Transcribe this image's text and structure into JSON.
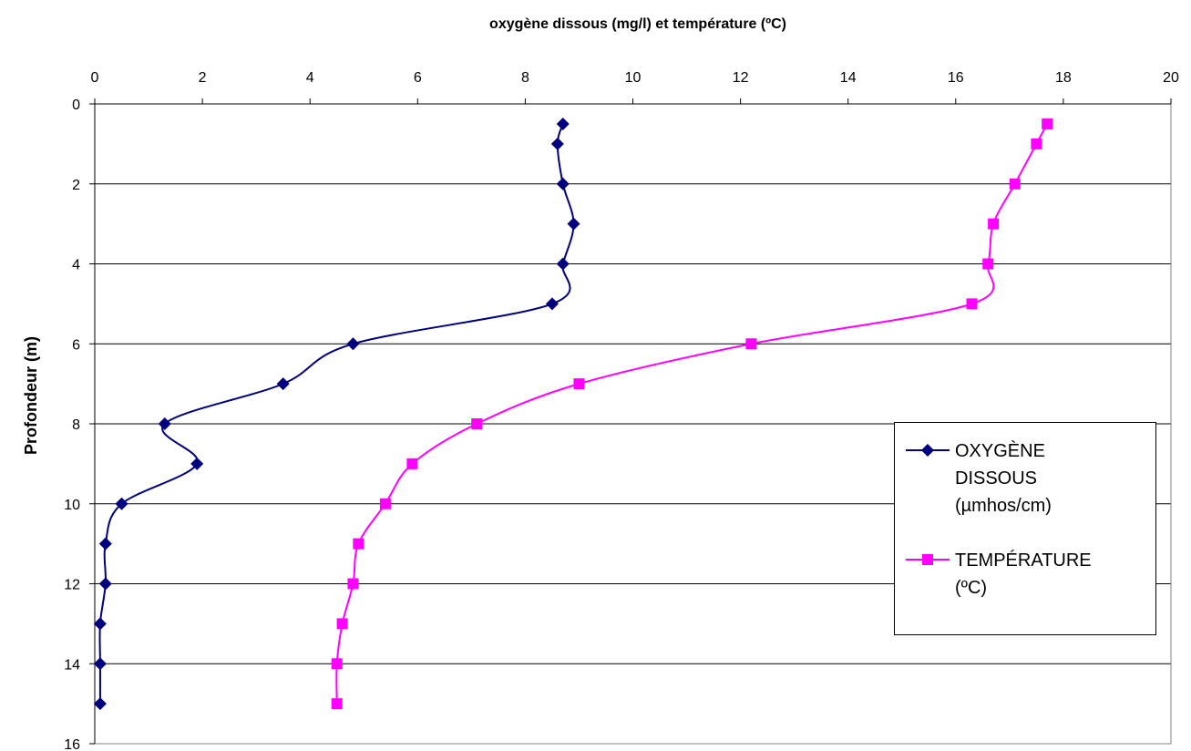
{
  "chart_data": {
    "type": "line",
    "title": "oxygène dissous (mg/l) et température (ºC)",
    "xlabel": "",
    "ylabel": "Profondeur (m)",
    "xlim": [
      0,
      20
    ],
    "ylim": [
      0,
      16
    ],
    "y_inverted": true,
    "x_axis_position": "top",
    "x_ticks": [
      0,
      2,
      4,
      6,
      8,
      10,
      12,
      14,
      16,
      18,
      20
    ],
    "y_ticks": [
      0,
      2,
      4,
      6,
      8,
      10,
      12,
      14,
      16
    ],
    "grid": "horizontal",
    "legend_position": "right",
    "series": [
      {
        "name": "OXYGÈNE DISSOUS (µmhos/cm)",
        "color": "#00007f",
        "marker": "diamond",
        "points": [
          {
            "x": 8.7,
            "y": 0.5
          },
          {
            "x": 8.6,
            "y": 1
          },
          {
            "x": 8.7,
            "y": 2
          },
          {
            "x": 8.9,
            "y": 3
          },
          {
            "x": 8.7,
            "y": 4
          },
          {
            "x": 8.5,
            "y": 5
          },
          {
            "x": 4.8,
            "y": 6
          },
          {
            "x": 3.5,
            "y": 7
          },
          {
            "x": 1.3,
            "y": 8
          },
          {
            "x": 1.9,
            "y": 9
          },
          {
            "x": 0.5,
            "y": 10
          },
          {
            "x": 0.2,
            "y": 11
          },
          {
            "x": 0.2,
            "y": 12
          },
          {
            "x": 0.1,
            "y": 13
          },
          {
            "x": 0.1,
            "y": 14
          },
          {
            "x": 0.1,
            "y": 15
          }
        ]
      },
      {
        "name": "TEMPÉRATURE (ºC)",
        "color": "#ff00ff",
        "marker": "square",
        "points": [
          {
            "x": 17.7,
            "y": 0.5
          },
          {
            "x": 17.5,
            "y": 1
          },
          {
            "x": 17.1,
            "y": 2
          },
          {
            "x": 16.7,
            "y": 3
          },
          {
            "x": 16.6,
            "y": 4
          },
          {
            "x": 16.3,
            "y": 5
          },
          {
            "x": 12.2,
            "y": 6
          },
          {
            "x": 9.0,
            "y": 7
          },
          {
            "x": 7.1,
            "y": 8
          },
          {
            "x": 5.9,
            "y": 9
          },
          {
            "x": 5.4,
            "y": 10
          },
          {
            "x": 4.9,
            "y": 11
          },
          {
            "x": 4.8,
            "y": 12
          },
          {
            "x": 4.6,
            "y": 13
          },
          {
            "x": 4.5,
            "y": 14
          },
          {
            "x": 4.5,
            "y": 15
          }
        ]
      }
    ]
  },
  "legend": {
    "items": [
      {
        "label": "OXYGÈNE\nDISSOUS\n(µmhos/cm)"
      },
      {
        "label": "TEMPÉRATURE\n(ºC)"
      }
    ]
  }
}
